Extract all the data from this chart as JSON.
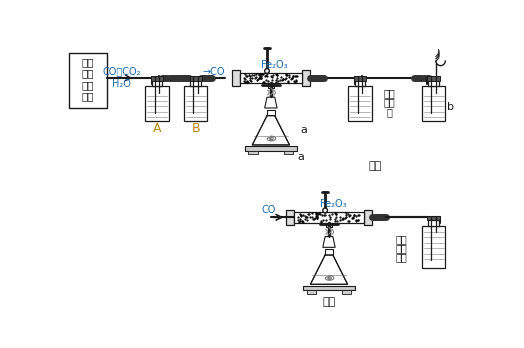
{
  "bg_color": "#ffffff",
  "blue_color": "#1a6bb5",
  "black": "#1a1a1a",
  "box_label": [
    "加热",
    "草酸",
    "晶体",
    "装置"
  ],
  "gas_top": "CO、CO₂",
  "gas_bot": "H₂O",
  "arrow_co": "→CO",
  "fe2o3": "Fe₂O₃",
  "A": "A",
  "B": "B",
  "a_label": "a",
  "b_label": "b",
  "lime_top": [
    "澳清",
    "石灰",
    "水"
  ],
  "lime_bot": [
    "澳清",
    "的石",
    "灰水"
  ],
  "co2": "CO",
  "fig_jia": "图甲",
  "fig_yi": "图乙"
}
